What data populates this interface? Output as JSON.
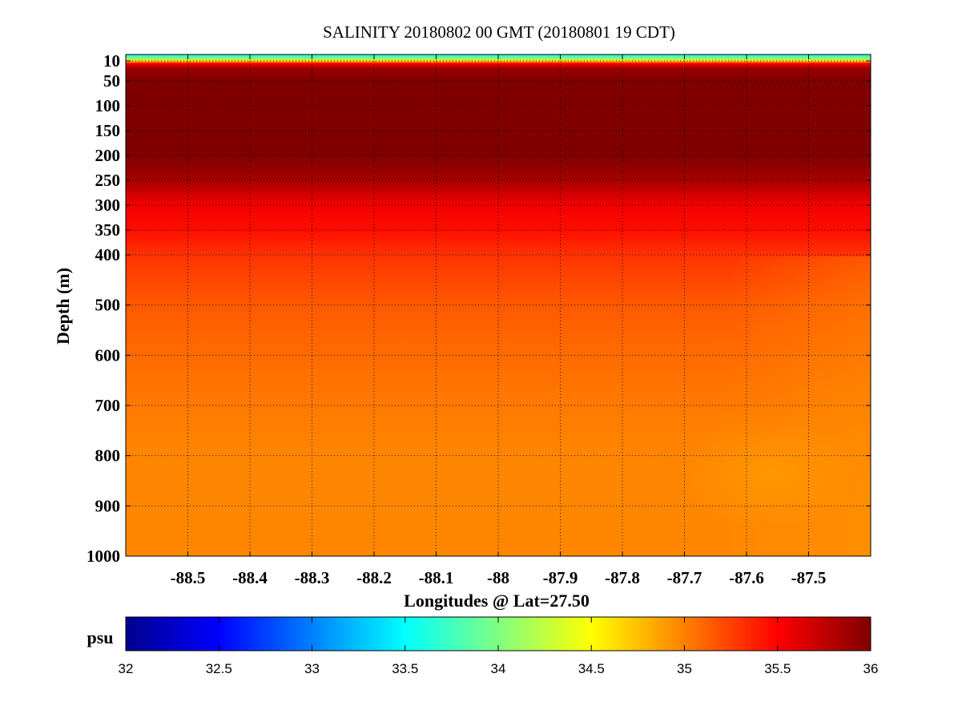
{
  "chart_data": {
    "type": "heatmap",
    "title": "SALINITY 20180802 00 GMT (20180801 19 CDT)",
    "xlabel": "Longitudes @ Lat=27.50",
    "ylabel": "Depth (m)",
    "xlim": [
      -88.6,
      -87.4
    ],
    "ylim": [
      1000,
      0
    ],
    "y_scale": "stretched (upper 400 m expanded)",
    "grid": true,
    "x_ticks": [
      -88.5,
      -88.4,
      -88.3,
      -88.2,
      -88.1,
      -88,
      -87.9,
      -87.8,
      -87.7,
      -87.6,
      -87.5
    ],
    "x_tick_labels": [
      "-88.5",
      "-88.4",
      "-88.3",
      "-88.2",
      "-88.1",
      "-88",
      "-87.9",
      "-87.8",
      "-87.7",
      "-87.6",
      "-87.5"
    ],
    "y_ticks": [
      10,
      50,
      100,
      150,
      200,
      250,
      300,
      350,
      400,
      500,
      600,
      700,
      800,
      900,
      1000
    ],
    "y_tick_labels": [
      "10",
      "50",
      "100",
      "150",
      "200",
      "250",
      "300",
      "350",
      "400",
      "500",
      "600",
      "700",
      "800",
      "900",
      "1000"
    ],
    "colorbar": {
      "label": "psu",
      "range": [
        32,
        36
      ],
      "ticks": [
        32,
        32.5,
        33,
        33.5,
        34,
        34.5,
        35,
        35.5,
        36
      ],
      "tick_labels": [
        "32",
        "32.5",
        "33",
        "33.5",
        "34",
        "34.5",
        "35",
        "35.5",
        "36"
      ],
      "colormap": "jet",
      "colors": [
        "#00008f",
        "#0000ff",
        "#00ffff",
        "#ffff00",
        "#ff0000",
        "#800000"
      ]
    },
    "salinity_profile": [
      {
        "depth": 0,
        "psu": 33.6
      },
      {
        "depth": 5,
        "psu": 33.9
      },
      {
        "depth": 10,
        "psu": 34.6
      },
      {
        "depth": 15,
        "psu": 35.5
      },
      {
        "depth": 25,
        "psu": 35.9
      },
      {
        "depth": 50,
        "psu": 36.0
      },
      {
        "depth": 200,
        "psu": 36.0
      },
      {
        "depth": 250,
        "psu": 35.85
      },
      {
        "depth": 300,
        "psu": 35.55
      },
      {
        "depth": 350,
        "psu": 35.45
      },
      {
        "depth": 400,
        "psu": 35.3
      },
      {
        "depth": 500,
        "psu": 35.15
      },
      {
        "depth": 600,
        "psu": 35.08
      },
      {
        "depth": 700,
        "psu": 35.02
      },
      {
        "depth": 800,
        "psu": 34.98
      },
      {
        "depth": 900,
        "psu": 34.97
      },
      {
        "depth": 1000,
        "psu": 34.97
      }
    ]
  }
}
